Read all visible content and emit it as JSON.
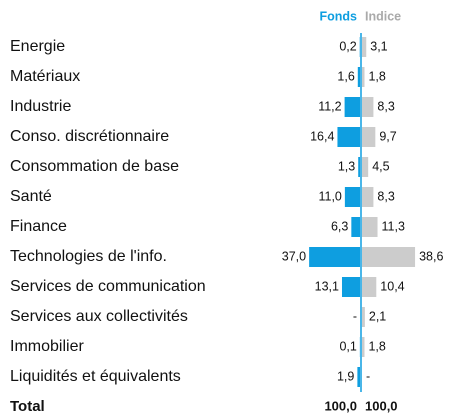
{
  "chart_data": {
    "type": "butterfly",
    "categories": [
      "Energie",
      "Matériaux",
      "Industrie",
      "Conso. discrétionnaire",
      "Consommation de base",
      "Santé",
      "Finance",
      "Technologies de l'info.",
      "Services de communication",
      "Services aux collectivités",
      "Immobilier",
      "Liquidités et équivalents"
    ],
    "series": [
      {
        "name": "Fonds",
        "color": "#0e9ee0",
        "values": [
          0.2,
          1.6,
          11.2,
          16.4,
          1.3,
          11.0,
          6.3,
          37.0,
          13.1,
          null,
          0.1,
          1.9
        ],
        "value_labels": [
          "0,2",
          "1,6",
          "11,2",
          "16,4",
          "1,3",
          "11,0",
          "6,3",
          "37,0",
          "13,1",
          "-",
          "0,1",
          "1,9"
        ]
      },
      {
        "name": "Indice",
        "color": "#cccccc",
        "values": [
          3.1,
          1.8,
          8.3,
          9.7,
          4.5,
          8.3,
          11.3,
          38.6,
          10.4,
          2.1,
          1.8,
          null
        ],
        "value_labels": [
          "3,1",
          "1,8",
          "8,3",
          "9,7",
          "4,5",
          "8,3",
          "11,3",
          "38,6",
          "10,4",
          "2,1",
          "1,8",
          "-"
        ]
      }
    ],
    "total_label": "Total",
    "totals": [
      100.0,
      100.0
    ],
    "total_labels": [
      "100,0",
      "100,0"
    ],
    "xlim": [
      0,
      40
    ]
  }
}
